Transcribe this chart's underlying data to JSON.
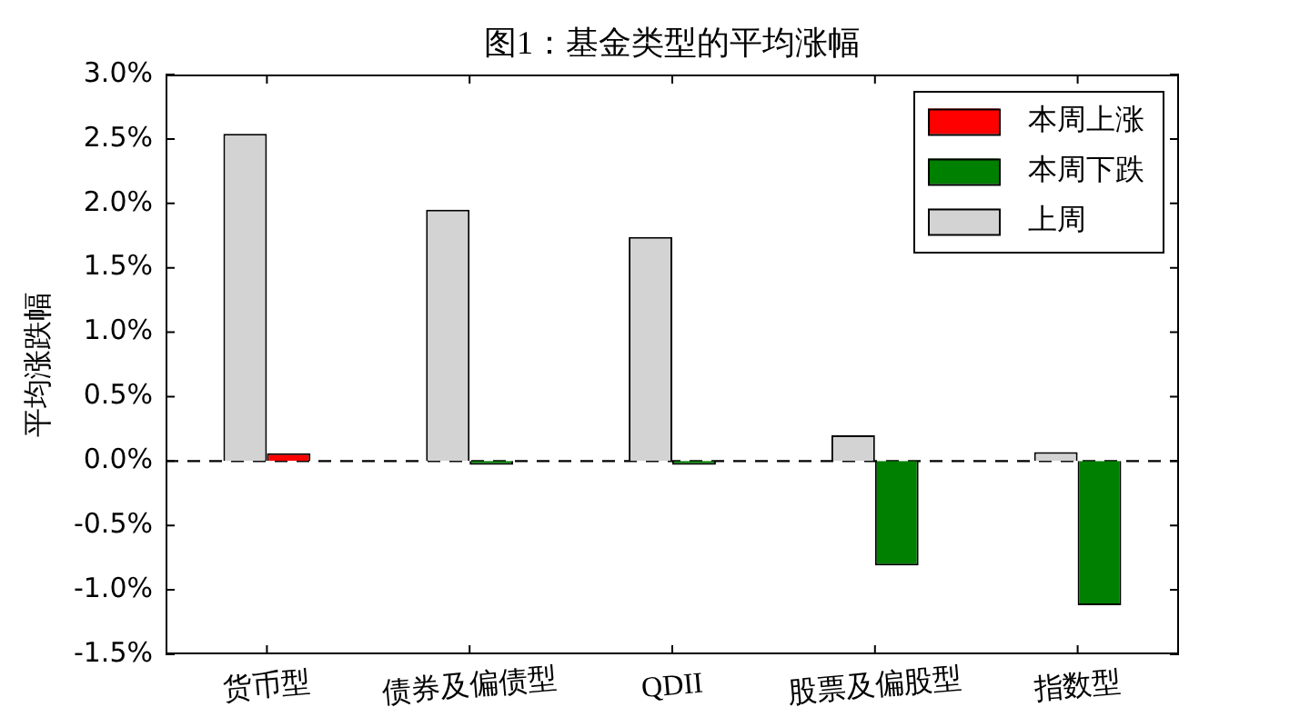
{
  "chart_data": {
    "type": "bar",
    "title": "图1：基金类型的平均涨幅",
    "ylabel": "平均涨跌幅",
    "categories": [
      "货币型",
      "债券及偏债型",
      "QDII",
      "股票及偏股型",
      "指数型"
    ],
    "series": [
      {
        "name": "本周上涨",
        "color": "#ff0000",
        "values": [
          0.06,
          null,
          null,
          null,
          null
        ]
      },
      {
        "name": "本周下跌",
        "color": "#008000",
        "values": [
          null,
          -0.03,
          -0.03,
          -0.81,
          -1.12
        ]
      },
      {
        "name": "上周",
        "color": "#d3d3d3",
        "values": [
          2.54,
          1.95,
          1.74,
          0.2,
          0.07
        ]
      }
    ],
    "ylim": [
      -1.5,
      3.0
    ],
    "yticks": [
      {
        "value": -1.5,
        "label": "-1.5%"
      },
      {
        "value": -1.0,
        "label": "-1.0%"
      },
      {
        "value": -0.5,
        "label": "-0.5%"
      },
      {
        "value": 0.0,
        "label": "0.0%"
      },
      {
        "value": 0.5,
        "label": "0.5%"
      },
      {
        "value": 1.0,
        "label": "1.0%"
      },
      {
        "value": 1.5,
        "label": "1.5%"
      },
      {
        "value": 2.0,
        "label": "2.0%"
      },
      {
        "value": 2.5,
        "label": "2.5%"
      },
      {
        "value": 3.0,
        "label": "3.0%"
      }
    ],
    "legend": "top right",
    "ref_lines": [
      {
        "axis": "y",
        "value": 0,
        "color": "#000000",
        "line_style": "dashed"
      }
    ]
  }
}
